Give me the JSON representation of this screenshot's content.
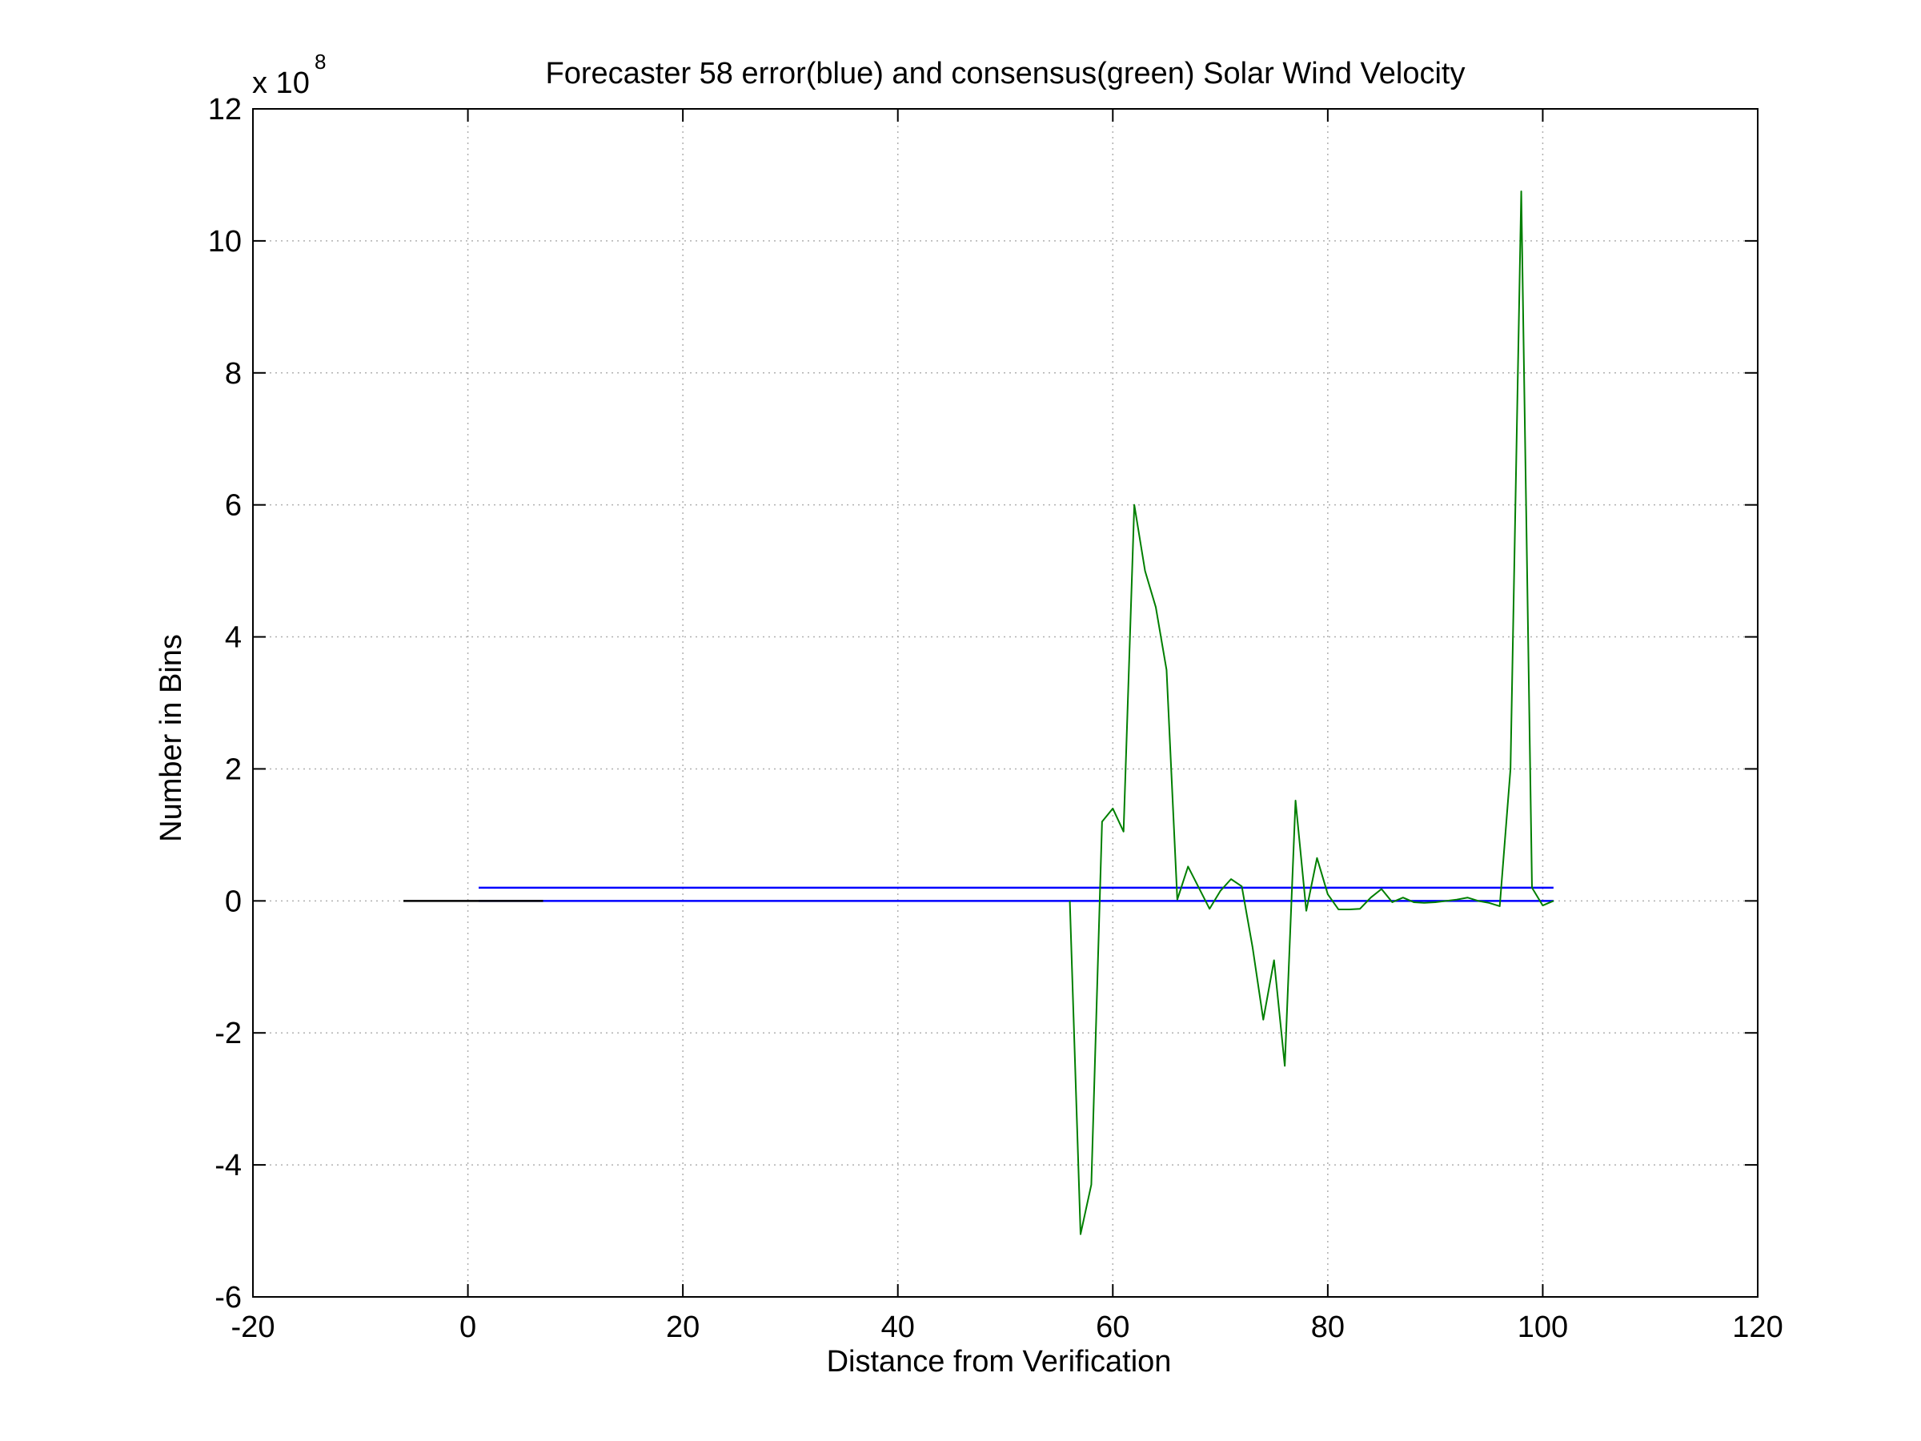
{
  "chart_data": {
    "type": "line",
    "title": "Forecaster 58 error(blue) and consensus(green)  Solar Wind Velocity",
    "xlabel": "Distance from Verification",
    "ylabel": "Number in Bins",
    "y_multiplier_base": "x 10",
    "y_multiplier_exponent": "8",
    "xlim": [
      -20,
      120
    ],
    "ylim": [
      -6,
      12
    ],
    "x_ticks": [
      -20,
      0,
      20,
      40,
      60,
      80,
      100,
      120
    ],
    "y_ticks": [
      -6,
      -4,
      -2,
      0,
      2,
      4,
      6,
      8,
      10,
      12
    ],
    "grid": true,
    "colors": {
      "consensus": "#007f00",
      "error": "#0000ff",
      "baseline": "#000000",
      "grid": "#b0b0b0",
      "axes": "#000000"
    },
    "series": [
      {
        "role": "error",
        "color": "#0000ff",
        "x": [
          1,
          101
        ],
        "y": [
          0.2,
          0.2
        ]
      },
      {
        "role": "error",
        "color": "#0000ff",
        "x": [
          1,
          101
        ],
        "y": [
          0,
          0
        ]
      },
      {
        "role": "baseline",
        "color": "#000000",
        "x": [
          -6,
          7
        ],
        "y": [
          0,
          0
        ]
      },
      {
        "role": "consensus",
        "color": "#007f00",
        "x": [
          56,
          57,
          58,
          59,
          60,
          61,
          62,
          63,
          64,
          65,
          66,
          67,
          68,
          69,
          70,
          71,
          72,
          73,
          74,
          75,
          76,
          77,
          78,
          79,
          80,
          81,
          82,
          83,
          84,
          85,
          86,
          87,
          88,
          89,
          90,
          91,
          92,
          93,
          94,
          95,
          96,
          97,
          98,
          99,
          100,
          101
        ],
        "y": [
          0,
          -5.05,
          -4.3,
          1.2,
          1.4,
          1.05,
          6.0,
          5.0,
          4.45,
          3.5,
          0.02,
          0.52,
          0.2,
          -0.12,
          0.15,
          0.33,
          0.22,
          -0.7,
          -1.8,
          -0.9,
          -2.5,
          1.52,
          -0.15,
          0.65,
          0.1,
          -0.13,
          -0.13,
          -0.12,
          0.05,
          0.18,
          -0.02,
          0.05,
          -0.02,
          -0.03,
          -0.02,
          0.0,
          0.02,
          0.05,
          0.0,
          -0.03,
          -0.08,
          2.0,
          10.75,
          0.2,
          -0.07,
          0.0
        ]
      }
    ]
  }
}
